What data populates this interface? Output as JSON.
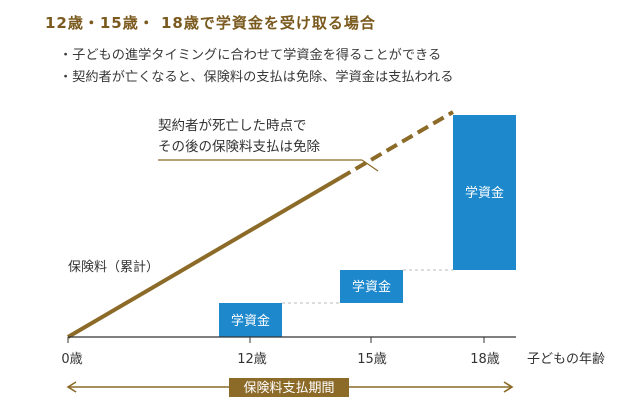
{
  "title": "12歳・15歳・ 18歳で学資金を受け取る場合",
  "bullets": [
    "・子どもの進学タイミングに合わせて学資金を得ることができる",
    "・契約者が亡くなると、保険料の支払は免除、学資金は支払われる"
  ],
  "annotation": {
    "line1": "契約者が死亡した時点で",
    "line2": "その後の保険料支払は免除"
  },
  "premium_label": "保険料（累計）",
  "benefit_label": "学資金",
  "x_axis": {
    "ticks": [
      "0歳",
      "12歳",
      "15歳",
      "18歳"
    ],
    "label": "子どもの年齢"
  },
  "period_label": "保険料支払期間",
  "colors": {
    "brown": "#8c6a28",
    "blue": "#1e88cc",
    "axis": "#333333"
  }
}
